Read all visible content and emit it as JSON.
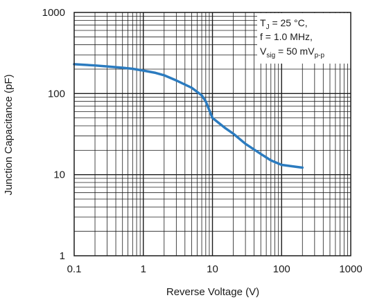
{
  "chart_data": {
    "type": "line",
    "xlabel": "Reverse Voltage (V)",
    "ylabel": "Junction Capacitance (pF)",
    "xscale": "log",
    "yscale": "log",
    "xlim": [
      0.1,
      1000
    ],
    "ylim": [
      1,
      1000
    ],
    "grid": true,
    "x_ticks": [
      "0.1",
      "1",
      "10",
      "100",
      "1000"
    ],
    "y_ticks": [
      "1",
      "10",
      "100",
      "1000"
    ],
    "series": [
      {
        "color": "#2b7bbf",
        "x": [
          0.1,
          0.2,
          0.3,
          0.5,
          0.7,
          1,
          1.5,
          2,
          3,
          5,
          7,
          8,
          10,
          15,
          20,
          30,
          50,
          70,
          100,
          150,
          200
        ],
        "y": [
          230,
          222,
          216,
          208,
          202,
          192,
          180,
          168,
          145,
          118,
          95,
          80,
          50,
          38,
          32,
          24,
          18,
          15,
          13.2,
          12.6,
          12.2
        ]
      }
    ],
    "annotation": {
      "line1_prefix": "T",
      "line1_sub": "J",
      "line1_suffix": " = 25 °C,",
      "line2": "f = 1.0 MHz,",
      "line3_prefix": "V",
      "line3_sub": "sig",
      "line3_mid": " = 50 mV",
      "line3_sub2": "p-p",
      "position": "top-right"
    }
  }
}
